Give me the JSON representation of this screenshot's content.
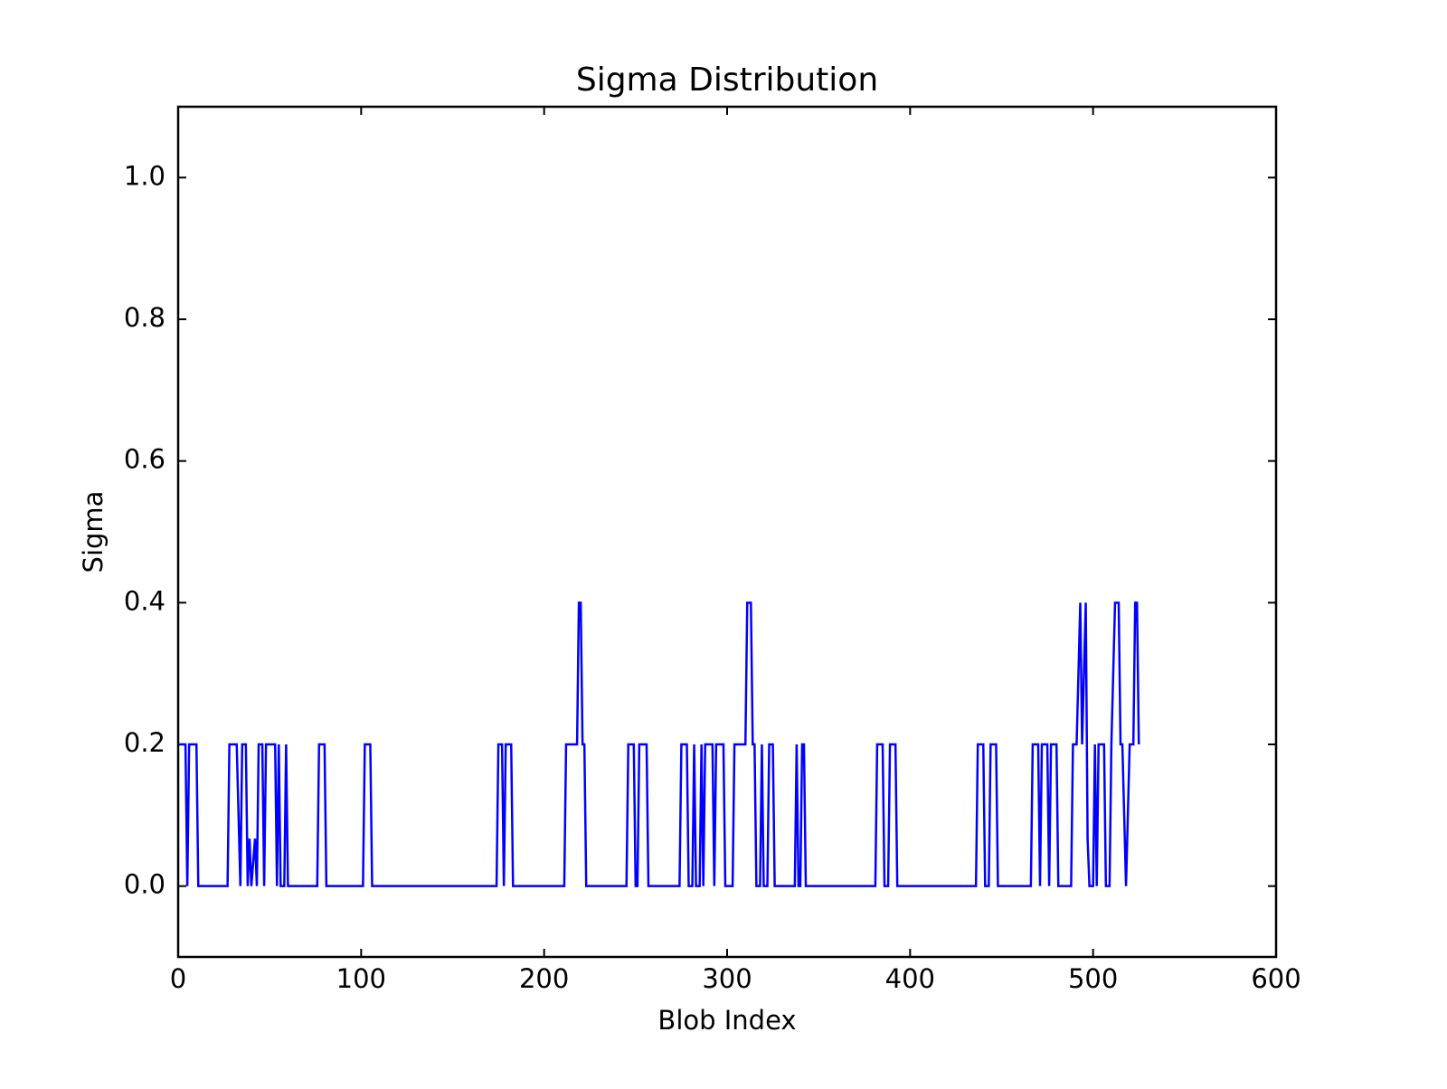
{
  "chart_data": {
    "type": "line",
    "title": "Sigma Distribution",
    "xlabel": "Blob Index",
    "ylabel": "Sigma",
    "color": "#0000ff",
    "x": [
      0,
      4,
      5,
      6,
      10,
      11,
      27,
      28,
      32,
      34,
      35,
      37,
      38,
      39,
      40,
      42,
      43,
      44,
      46,
      47,
      48,
      53,
      54,
      55,
      56,
      58,
      59,
      60,
      76,
      77,
      80,
      81,
      101,
      102,
      105,
      106,
      174,
      175,
      177,
      178,
      179,
      182,
      183,
      211,
      212,
      218,
      219,
      220,
      221,
      222,
      223,
      245,
      246,
      249,
      250,
      251,
      252,
      256,
      257,
      274,
      275,
      278,
      279,
      281,
      282,
      283,
      285,
      286,
      287,
      288,
      292,
      293,
      294,
      298,
      299,
      303,
      304,
      310,
      311,
      313,
      314,
      315,
      316,
      318,
      319,
      320,
      322,
      323,
      325,
      326,
      337,
      338,
      339,
      340,
      341,
      342,
      343,
      381,
      382,
      385,
      386,
      388,
      389,
      392,
      393,
      436,
      437,
      440,
      441,
      443,
      444,
      447,
      448,
      466,
      467,
      470,
      471,
      472,
      475,
      476,
      477,
      480,
      481,
      488,
      489,
      491,
      493,
      494,
      496,
      497,
      498,
      500,
      501,
      502,
      503,
      506,
      507,
      509,
      510,
      512,
      514,
      515,
      516,
      518,
      520,
      522,
      523,
      524,
      525
    ],
    "values": [
      0.2,
      0.2,
      0,
      0.2,
      0.2,
      0,
      0,
      0.2,
      0.2,
      0,
      0.2,
      0.2,
      0,
      0.067,
      0,
      0.067,
      0,
      0.2,
      0.2,
      0,
      0.2,
      0.2,
      0,
      0.2,
      0,
      0,
      0.2,
      0,
      0,
      0.2,
      0.2,
      0,
      0,
      0.2,
      0.2,
      0,
      0,
      0.2,
      0.2,
      0,
      0.2,
      0.2,
      0,
      0,
      0.2,
      0.2,
      0.4,
      0.4,
      0.2,
      0.2,
      0,
      0,
      0.2,
      0.2,
      0,
      0,
      0.2,
      0.2,
      0,
      0,
      0.2,
      0.2,
      0,
      0,
      0.2,
      0,
      0,
      0.2,
      0,
      0.2,
      0.2,
      0,
      0.2,
      0.2,
      0,
      0,
      0.2,
      0.2,
      0.4,
      0.4,
      0.2,
      0.2,
      0,
      0,
      0.2,
      0,
      0,
      0.2,
      0.2,
      0,
      0,
      0.2,
      0,
      0,
      0.2,
      0.2,
      0,
      0,
      0.2,
      0.2,
      0,
      0,
      0.2,
      0.2,
      0,
      0,
      0.2,
      0.2,
      0,
      0,
      0.2,
      0.2,
      0,
      0,
      0.2,
      0.2,
      0,
      0.2,
      0.2,
      0,
      0.2,
      0.2,
      0,
      0,
      0.2,
      0.2,
      0.4,
      0.2,
      0.4,
      0.067,
      0,
      0,
      0.2,
      0,
      0.2,
      0.2,
      0,
      0,
      0.2,
      0.4,
      0.4,
      0.2,
      0.2,
      0,
      0.2,
      0.2,
      0.4,
      0.4,
      0.2
    ],
    "xlim": [
      0,
      600
    ],
    "xticks": [
      0,
      100,
      200,
      300,
      400,
      500,
      600
    ],
    "ylim": [
      -0.1,
      1.1
    ],
    "yticks": [
      {
        "value": 0,
        "label": "0.0"
      },
      0.2,
      0.4,
      0.6,
      0.8,
      {
        "value": 1,
        "label": "1.0"
      }
    ]
  }
}
